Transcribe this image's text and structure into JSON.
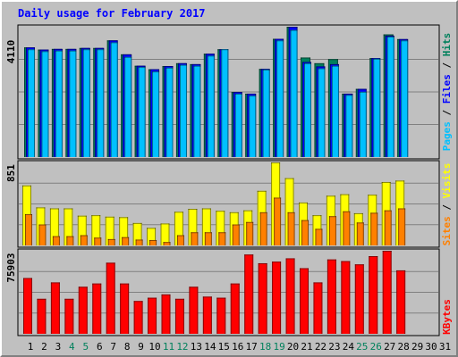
{
  "title": "Daily usage for February 2017",
  "colors": {
    "background": "#c0c0c0",
    "title": "#0000ff",
    "hits": "#00805c",
    "files": "#0000ff",
    "pages": "#00c0ff",
    "visits": "#ffff00",
    "sites": "#ff8000",
    "kbytes": "#ff0000",
    "weekend_label": "#00805c",
    "weekday_label": "#000000",
    "grid": "#808080"
  },
  "axis_labels": {
    "top": {
      "pages": "Pages",
      "files": "Files",
      "hits": "Hits",
      "separator": " / "
    },
    "middle": {
      "sites": "Sites",
      "visits": "Visits",
      "separator": " / "
    },
    "bottom": {
      "kbytes": "KBytes"
    }
  },
  "chart_data": [
    {
      "type": "bar",
      "panel": "hits-files-pages",
      "max_label": "4110",
      "ylim": [
        0,
        4110
      ],
      "grid": true,
      "x": [
        1,
        2,
        3,
        4,
        5,
        6,
        7,
        8,
        9,
        10,
        11,
        12,
        13,
        14,
        15,
        16,
        17,
        18,
        19,
        20,
        21,
        22,
        23,
        24,
        25,
        26,
        27,
        28
      ],
      "series": [
        {
          "name": "Hits",
          "values": [
            3460,
            3390,
            3410,
            3410,
            3440,
            3440,
            3680,
            3240,
            2880,
            2770,
            2870,
            2960,
            2930,
            3260,
            3400,
            2050,
            2000,
            2780,
            3730,
            4110,
            3140,
            2960,
            3090,
            2000,
            2150,
            3120,
            3870,
            3720
          ]
        },
        {
          "name": "Files",
          "values": [
            3460,
            3390,
            3410,
            3410,
            3440,
            3440,
            3680,
            3240,
            2880,
            2770,
            2870,
            2960,
            2930,
            3260,
            3400,
            2050,
            2000,
            2780,
            3730,
            4110,
            3000,
            2860,
            2930,
            2000,
            2150,
            3120,
            3830,
            3720
          ]
        },
        {
          "name": "Pages",
          "values": [
            3400,
            3340,
            3360,
            3360,
            3400,
            3400,
            3620,
            3160,
            2840,
            2700,
            2820,
            2910,
            2880,
            3200,
            3400,
            2000,
            1940,
            2760,
            3680,
            4010,
            2960,
            2800,
            2880,
            1960,
            2060,
            3100,
            3800,
            3680
          ]
        }
      ]
    },
    {
      "type": "bar",
      "panel": "visits-sites",
      "max_label": "851",
      "ylim": [
        0,
        851
      ],
      "grid": true,
      "x": [
        1,
        2,
        3,
        4,
        5,
        6,
        7,
        8,
        9,
        10,
        11,
        12,
        13,
        14,
        15,
        16,
        17,
        18,
        19,
        20,
        21,
        22,
        23,
        24,
        25,
        26,
        27,
        28
      ],
      "series": [
        {
          "name": "Visits",
          "values": [
            615,
            390,
            380,
            380,
            305,
            310,
            295,
            290,
            230,
            180,
            225,
            345,
            375,
            380,
            355,
            340,
            360,
            560,
            851,
            690,
            440,
            310,
            510,
            525,
            330,
            520,
            650,
            665
          ]
        },
        {
          "name": "Sites",
          "values": [
            320,
            215,
            95,
            95,
            105,
            80,
            65,
            85,
            60,
            55,
            35,
            105,
            135,
            135,
            135,
            215,
            240,
            340,
            490,
            340,
            260,
            170,
            300,
            350,
            235,
            335,
            360,
            380
          ]
        }
      ]
    },
    {
      "type": "bar",
      "panel": "kbytes",
      "max_label": "75903",
      "ylim": [
        0,
        75903
      ],
      "grid": true,
      "x": [
        1,
        2,
        3,
        4,
        5,
        6,
        7,
        8,
        9,
        10,
        11,
        12,
        13,
        14,
        15,
        16,
        17,
        18,
        19,
        20,
        21,
        22,
        23,
        24,
        25,
        26,
        27,
        28
      ],
      "series": [
        {
          "name": "KBytes",
          "values": [
            51000,
            32000,
            47000,
            32000,
            43000,
            46000,
            65000,
            46000,
            30000,
            33000,
            36000,
            32000,
            43000,
            34000,
            33000,
            46000,
            72500,
            64500,
            66000,
            69000,
            60000,
            47000,
            68000,
            66500,
            63500,
            71000,
            75903,
            58000
          ]
        }
      ]
    }
  ],
  "day_labels": [
    {
      "text": "1",
      "weekend": false
    },
    {
      "text": "2",
      "weekend": false
    },
    {
      "text": "3",
      "weekend": false
    },
    {
      "text": "4",
      "weekend": true
    },
    {
      "text": "5",
      "weekend": true
    },
    {
      "text": "6",
      "weekend": false
    },
    {
      "text": "7",
      "weekend": false
    },
    {
      "text": "8",
      "weekend": false
    },
    {
      "text": "9",
      "weekend": false
    },
    {
      "text": "10",
      "weekend": false
    },
    {
      "text": "11",
      "weekend": true
    },
    {
      "text": "12",
      "weekend": true
    },
    {
      "text": "13",
      "weekend": false
    },
    {
      "text": "14",
      "weekend": false
    },
    {
      "text": "15",
      "weekend": false
    },
    {
      "text": "16",
      "weekend": false
    },
    {
      "text": "17",
      "weekend": false
    },
    {
      "text": "18",
      "weekend": true
    },
    {
      "text": "19",
      "weekend": true
    },
    {
      "text": "20",
      "weekend": false
    },
    {
      "text": "21",
      "weekend": false
    },
    {
      "text": "22",
      "weekend": false
    },
    {
      "text": "23",
      "weekend": false
    },
    {
      "text": "24",
      "weekend": false
    },
    {
      "text": "25",
      "weekend": true
    },
    {
      "text": "26",
      "weekend": true
    },
    {
      "text": "27",
      "weekend": false
    },
    {
      "text": "28",
      "weekend": false
    },
    {
      "text": "29",
      "weekend": false
    },
    {
      "text": "30",
      "weekend": false
    },
    {
      "text": "31",
      "weekend": false
    }
  ]
}
